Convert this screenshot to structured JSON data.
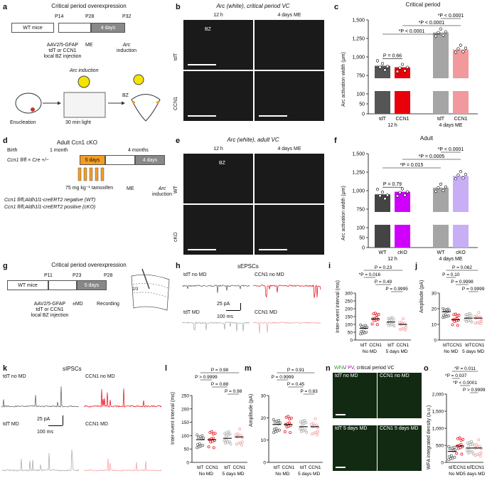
{
  "colors": {
    "tdT_dark": "#555555",
    "ccn1_red": "#e8000b",
    "tdT_light": "#a5a5a5",
    "ccn1_pink": "#f2999d",
    "wt_dark": "#444444",
    "cko_magenta": "#d000ff",
    "wt_light": "#a5a5a5",
    "cko_lavender": "#c7aef5",
    "schedule_orange": "#f39c24",
    "schedule_gray": "#888888"
  },
  "panel_a": {
    "letter": "a",
    "title": "Critical period overexpression",
    "timeline": {
      "wt": "WT mice",
      "p14": "P14",
      "p28": "P28",
      "p32": "P32",
      "days": "4 days",
      "injection": [
        "AAV2/5-GFAP",
        "tdT or CCN1",
        "local BZ injection"
      ],
      "me": "ME",
      "arc_ind": [
        "Arc",
        "induction"
      ]
    },
    "arc_induction_label": "Arc induction",
    "enucleation": "Enucleation",
    "light": "30 min light",
    "bz": "BZ"
  },
  "panel_b": {
    "letter": "b",
    "title": "Arc (white), critical period VC",
    "col1": "12 h",
    "col2": "4 days ME",
    "row1": "tdT",
    "row2": "CCN1",
    "bz": "BZ"
  },
  "panel_c": {
    "letter": "c",
    "title": "Critical period",
    "ylabel": "Arc activation width (μm)",
    "yticks": [
      "0",
      "50",
      "100",
      "750",
      "1,000",
      "1,250",
      "1,500"
    ],
    "groups": [
      "tdT",
      "CCN1",
      "tdT",
      "CCN1"
    ],
    "conds": [
      "12 h",
      "4 days ME"
    ],
    "stats": [
      "P = 0.66",
      "*P < 0.0001",
      "*P < 0.0001",
      "*P < 0.0001"
    ]
  },
  "panel_d": {
    "letter": "d",
    "title": "Adult Ccn1 cKO",
    "labels": {
      "birth": "Birth",
      "month": "1 month",
      "months": "4 months",
      "cross": "Ccn1 fl/fl × Cre +/−",
      "days5": "5 days",
      "days4": "4 days",
      "me": "ME",
      "arc_ind": [
        "Arc",
        "induction"
      ],
      "tam": "75 mg kg⁻¹ tamoxifen",
      "wt": "Ccn1 fl/fl;Aldh1l1-creERT2 negative (WT)",
      "cko": "Ccn1 fl/fl;Aldh1l1-creERT2 positive (cKO)"
    }
  },
  "panel_e": {
    "letter": "e",
    "title": "Arc (white), adult VC",
    "col1": "12 h",
    "col2": "4 days ME",
    "row1": "WT",
    "row2": "cKO",
    "bz": "BZ"
  },
  "panel_f": {
    "letter": "f",
    "title": "Adult",
    "ylabel": "Arc activation width (μm)",
    "yticks": [
      "0",
      "50",
      "100",
      "750",
      "1,000",
      "1,250",
      "1,500"
    ],
    "groups": [
      "WT",
      "cKO",
      "WT",
      "cKO"
    ],
    "conds": [
      "12 h",
      "4 days ME"
    ],
    "stats": [
      "P = 0.79",
      "*P = 0.015",
      "*P = 0.0005",
      "*P < 0.0001"
    ]
  },
  "panel_g": {
    "letter": "g",
    "title": "Critical period overexpression",
    "labels": {
      "wt": "WT mice",
      "p11": "P11",
      "p23": "P23",
      "p28": "P28",
      "days": "5 days",
      "injection": [
        "AAV2/5-GFAP",
        "tdT or CCN1",
        "local BZ injection"
      ],
      "md": "±MD",
      "rec": "Recording",
      "layers": "2/3"
    }
  },
  "panel_h": {
    "letter": "h",
    "title": "sEPSCs",
    "tr1": "tdT no MD",
    "tr2": "CCN1 no MD",
    "tr3": "tdT MD",
    "tr4": "CCN1 MD",
    "scale_pa": "25 pA",
    "scale_ms": "100 ms"
  },
  "panel_i": {
    "letter": "i",
    "ylabel": "Inter-event interval (ms)",
    "yticks": [
      "0",
      "50",
      "100",
      "150",
      "200",
      "250",
      "300"
    ],
    "groups": [
      "tdT",
      "CCN1",
      "tdT",
      "CCN1"
    ],
    "conds": [
      "No MD",
      "5 days MD"
    ],
    "stats": [
      "P = 0.23",
      "*P = 0.016",
      "P = 0.49",
      "P = 0.9995"
    ]
  },
  "panel_j": {
    "letter": "j",
    "ylabel": "Amplitude (pA)",
    "yticks": [
      "0",
      "10",
      "20",
      "30"
    ],
    "groups": [
      "tdT",
      "CCN1",
      "tdT",
      "CCN1"
    ],
    "conds": [
      "No MD",
      "5 days MD"
    ],
    "stats": [
      "P = 0.062",
      "P = 0.10",
      "P = 0.9998",
      "P = 0.9999"
    ]
  },
  "panel_k": {
    "letter": "k",
    "title": "sIPSCs",
    "tr1": "tdT no MD",
    "tr2": "CCN1 no MD",
    "tr3": "tdT MD",
    "tr4": "CCN1 MD",
    "scale_pa": "25 pA",
    "scale_ms": "100 ms"
  },
  "panel_l": {
    "letter": "l",
    "ylabel": "Inter-event interval (ms)",
    "yticks": [
      "0",
      "50",
      "100",
      "150",
      "200",
      "250"
    ],
    "groups": [
      "tdT",
      "CCN1",
      "tdT",
      "CCN1"
    ],
    "conds": [
      "No MD",
      "5 days MD"
    ],
    "stats": [
      "P = 0.98",
      "P > 0.9999",
      "P = 0.88",
      "P = 0.98"
    ]
  },
  "panel_m": {
    "letter": "m",
    "ylabel": "Amplitude (pA)",
    "yticks": [
      "0",
      "10",
      "20",
      "30"
    ],
    "groups": [
      "tdT",
      "CCN1",
      "tdT",
      "CCN1"
    ],
    "conds": [
      "No MD",
      "5 days MD"
    ],
    "stats": [
      "P = 0.91",
      "P = 0.9999",
      "P = 0.45",
      "P = 0.83"
    ]
  },
  "panel_n": {
    "letter": "n",
    "title_wfa": "WFA",
    "title_pv": "PV",
    "title_rest": ", critical period VC",
    "q1": "tdT no MD",
    "q2": "CCN1 no MD",
    "q3": "tdT 5 days MD",
    "q4": "CCN1 5 days MD"
  },
  "panel_o": {
    "letter": "o",
    "ylabel": "WFA integrated density (a.u.)",
    "yticks": [
      "0",
      "500",
      "1,000",
      "1,500",
      "2,000"
    ],
    "groups": [
      "tdT",
      "CCN1",
      "tdT",
      "CCN1"
    ],
    "conds": [
      "No MD",
      "5 days MD"
    ],
    "stats": [
      "*P = 0.011",
      "*P = 0.037",
      "*P < 0.0001",
      "P > 0.9999"
    ]
  },
  "chart_data": [
    {
      "panel": "c",
      "type": "bar",
      "categories": [
        "tdT 12 h",
        "CCN1 12 h",
        "tdT 4 days ME",
        "CCN1 4 days ME"
      ],
      "values": [
        880,
        860,
        1330,
        1100
      ],
      "ylabel": "Arc activation width (μm)",
      "title": "Critical period"
    },
    {
      "panel": "f",
      "type": "bar",
      "categories": [
        "WT 12 h",
        "cKO 12 h",
        "WT 4 days ME",
        "cKO 4 days ME"
      ],
      "values": [
        950,
        985,
        1040,
        1200
      ],
      "ylabel": "Arc activation width (μm)",
      "title": "Adult"
    },
    {
      "panel": "i",
      "type": "scatter",
      "categories": [
        "tdT No MD",
        "CCN1 No MD",
        "tdT 5 days MD",
        "CCN1 5 days MD"
      ],
      "values": [
        75,
        135,
        115,
        100
      ],
      "ylabel": "Inter-event interval (ms)",
      "ylim": [
        0,
        300
      ]
    },
    {
      "panel": "j",
      "type": "scatter",
      "categories": [
        "tdT No MD",
        "CCN1 No MD",
        "tdT 5 days MD",
        "CCN1 5 days MD"
      ],
      "values": [
        18,
        13,
        14,
        14
      ],
      "ylabel": "Amplitude (pA)",
      "ylim": [
        0,
        30
      ]
    },
    {
      "panel": "l",
      "type": "scatter",
      "categories": [
        "tdT No MD",
        "CCN1 No MD",
        "tdT 5 days MD",
        "CCN1 5 days MD"
      ],
      "values": [
        85,
        85,
        90,
        95
      ],
      "ylabel": "Inter-event interval (ms)",
      "ylim": [
        0,
        250
      ]
    },
    {
      "panel": "m",
      "type": "scatter",
      "categories": [
        "tdT No MD",
        "CCN1 No MD",
        "tdT 5 days MD",
        "CCN1 5 days MD"
      ],
      "values": [
        17,
        17,
        16,
        16
      ],
      "ylabel": "Amplitude (pA)",
      "ylim": [
        0,
        30
      ]
    },
    {
      "panel": "o",
      "type": "scatter",
      "categories": [
        "tdT No MD",
        "CCN1 No MD",
        "tdT 5 days MD",
        "CCN1 5 days MD"
      ],
      "values": [
        320,
        480,
        420,
        420
      ],
      "ylabel": "WFA integrated density (a.u.)",
      "ylim": [
        0,
        2000
      ]
    }
  ]
}
